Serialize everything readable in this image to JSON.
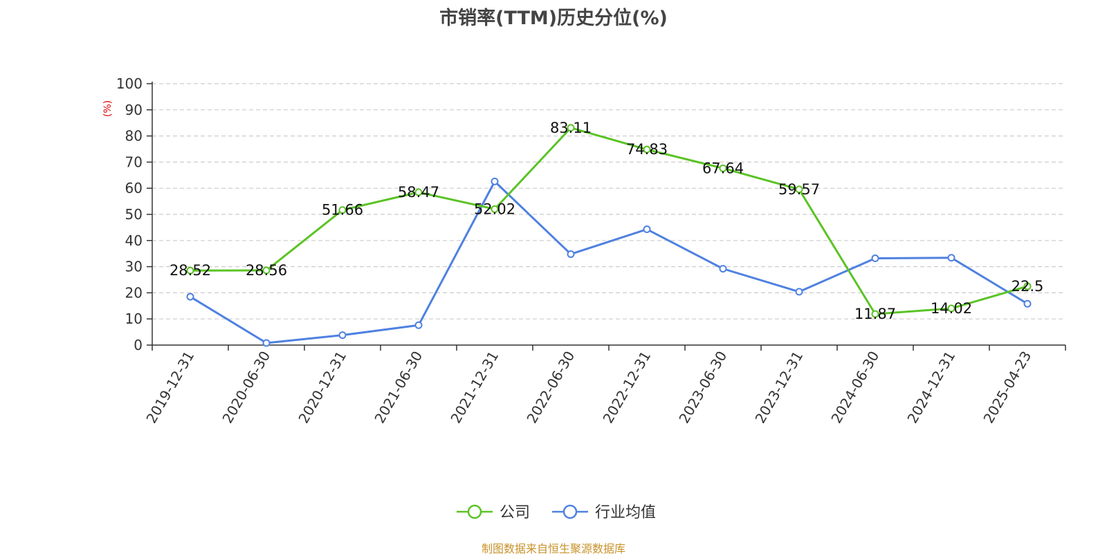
{
  "chart_data": {
    "type": "line",
    "title": "市销率(TTM)历史分位(%)",
    "ylabel": "(%)",
    "xlabel": "",
    "categories": [
      "2019-12-31",
      "2020-06-30",
      "2020-12-31",
      "2021-06-30",
      "2021-12-31",
      "2022-06-30",
      "2022-12-31",
      "2023-06-30",
      "2023-12-31",
      "2024-06-30",
      "2024-12-31",
      "2025-04-23"
    ],
    "ylim": [
      0,
      100
    ],
    "yticks": [
      0,
      10,
      20,
      30,
      40,
      50,
      60,
      70,
      80,
      90,
      100
    ],
    "grid": "horizontal-dashed",
    "legend_position": "bottom",
    "series": [
      {
        "name": "公司",
        "color": "#5bc325",
        "values": [
          28.52,
          28.56,
          51.66,
          58.47,
          52.02,
          83.11,
          74.83,
          67.64,
          59.57,
          11.87,
          14.02,
          22.5
        ],
        "labels": [
          "28.52",
          "28.56",
          "51.66",
          "58.47",
          "52.02",
          "83.11",
          "74.83",
          "67.64",
          "59.57",
          "11.87",
          "14.02",
          "22.5"
        ]
      },
      {
        "name": "行业均值",
        "color": "#4f81e0",
        "values": [
          18.5,
          0.8,
          3.8,
          7.6,
          62.6,
          34.8,
          44.3,
          29.2,
          20.4,
          33.2,
          33.4,
          15.8
        ]
      }
    ]
  },
  "footer": {
    "source": "制图数据来自恒生聚源数据库"
  }
}
